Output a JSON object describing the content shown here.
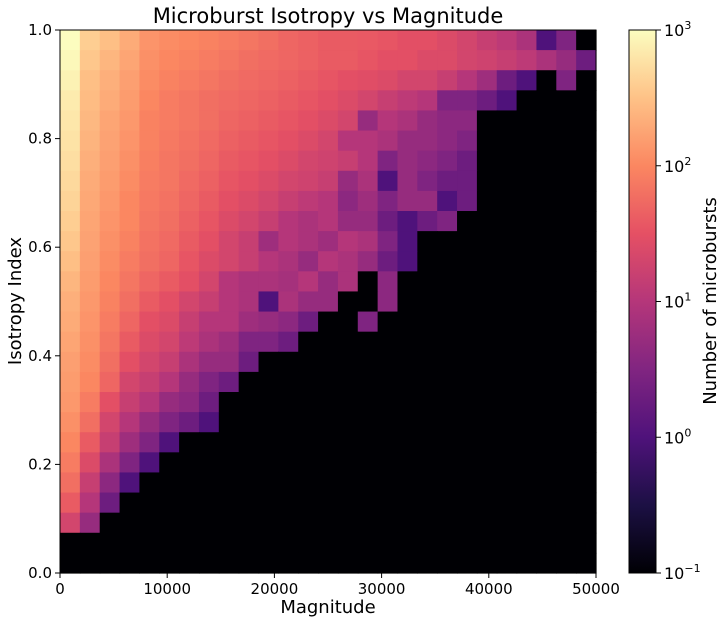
{
  "chart_data": {
    "type": "heatmap",
    "title": "Microburst Isotropy vs Magnitude",
    "xlabel": "Magnitude",
    "ylabel": "Isotropy Index",
    "xlim": [
      0,
      50000
    ],
    "ylim": [
      0,
      1.0
    ],
    "x_ticks": [
      "0",
      "10000",
      "20000",
      "30000",
      "40000",
      "50000"
    ],
    "y_ticks": [
      "0.0",
      "0.2",
      "0.4",
      "0.6",
      "0.8",
      "1.0"
    ],
    "x_tick_values": [
      0,
      10000,
      20000,
      30000,
      40000,
      50000
    ],
    "y_tick_values": [
      0,
      0.2,
      0.4,
      0.6,
      0.8,
      1.0
    ],
    "x_bins": {
      "start": 0,
      "end": 50000,
      "count": 27
    },
    "y_bins": {
      "start": 0,
      "end": 1.0,
      "count": 27
    },
    "colorbar": {
      "label": "Number of microbursts",
      "scale": "log",
      "vmin": 0.1,
      "vmax": 1000,
      "ticks": [
        {
          "base": "10",
          "exp": "−1",
          "value": 0.1
        },
        {
          "base": "10",
          "exp": "0",
          "value": 1
        },
        {
          "base": "10",
          "exp": "1",
          "value": 10
        },
        {
          "base": "10",
          "exp": "2",
          "value": 100
        },
        {
          "base": "10",
          "exp": "3",
          "value": 1000
        }
      ],
      "colormap": "magma"
    },
    "counts_rows_top_to_bottom": [
      [
        1000,
        400,
        300,
        200,
        130,
        110,
        100,
        90,
        80,
        70,
        60,
        50,
        45,
        40,
        40,
        38,
        35,
        30,
        30,
        25,
        20,
        15,
        12,
        8,
        1,
        3,
        0
      ],
      [
        900,
        350,
        250,
        180,
        120,
        100,
        90,
        80,
        70,
        60,
        55,
        50,
        45,
        40,
        40,
        35,
        30,
        30,
        25,
        25,
        20,
        18,
        15,
        12,
        8,
        5,
        2
      ],
      [
        800,
        300,
        220,
        160,
        110,
        90,
        80,
        70,
        60,
        55,
        50,
        45,
        40,
        35,
        30,
        28,
        25,
        20,
        20,
        15,
        10,
        6,
        2,
        1,
        0,
        3,
        0
      ],
      [
        700,
        280,
        200,
        150,
        100,
        80,
        70,
        60,
        55,
        50,
        45,
        40,
        35,
        30,
        25,
        20,
        15,
        12,
        10,
        3,
        3,
        2,
        1,
        0,
        0,
        0,
        0
      ],
      [
        650,
        260,
        180,
        140,
        90,
        80,
        70,
        60,
        50,
        45,
        40,
        35,
        30,
        25,
        20,
        5,
        10,
        8,
        5,
        4,
        4,
        0,
        0,
        0,
        0,
        0,
        0
      ],
      [
        600,
        240,
        170,
        130,
        90,
        75,
        65,
        55,
        45,
        40,
        35,
        30,
        25,
        20,
        10,
        10,
        8,
        5,
        5,
        4,
        3,
        0,
        0,
        0,
        0,
        0,
        0
      ],
      [
        550,
        220,
        160,
        120,
        85,
        70,
        60,
        50,
        40,
        35,
        30,
        25,
        20,
        18,
        15,
        10,
        3,
        5,
        4,
        3,
        2,
        0,
        0,
        0,
        0,
        0,
        0
      ],
      [
        500,
        200,
        150,
        110,
        80,
        70,
        55,
        45,
        35,
        30,
        25,
        20,
        18,
        15,
        5,
        8,
        1,
        5,
        3,
        2,
        2,
        0,
        0,
        0,
        0,
        0,
        0
      ],
      [
        450,
        190,
        140,
        100,
        75,
        65,
        50,
        40,
        30,
        25,
        20,
        15,
        12,
        10,
        4,
        6,
        3,
        5,
        5,
        1,
        2,
        0,
        0,
        0,
        0,
        0,
        0
      ],
      [
        400,
        180,
        130,
        100,
        70,
        60,
        45,
        35,
        25,
        20,
        15,
        10,
        8,
        10,
        5,
        5,
        2,
        1,
        2,
        3,
        0,
        0,
        0,
        0,
        0,
        0,
        0
      ],
      [
        350,
        170,
        120,
        90,
        65,
        55,
        40,
        30,
        20,
        15,
        6,
        10,
        8,
        6,
        10,
        8,
        3,
        1,
        0,
        0,
        0,
        0,
        0,
        0,
        0,
        0,
        0
      ],
      [
        300,
        160,
        110,
        80,
        60,
        50,
        35,
        25,
        20,
        15,
        10,
        8,
        5,
        10,
        8,
        5,
        2,
        1,
        0,
        0,
        0,
        0,
        0,
        0,
        0,
        0,
        0
      ],
      [
        250,
        150,
        100,
        70,
        50,
        40,
        30,
        20,
        10,
        8,
        8,
        7,
        10,
        5,
        8,
        0,
        4,
        0,
        0,
        0,
        0,
        0,
        0,
        0,
        0,
        0,
        0
      ],
      [
        220,
        140,
        90,
        60,
        40,
        30,
        20,
        15,
        10,
        8,
        1,
        8,
        5,
        5,
        0,
        0,
        4,
        0,
        0,
        0,
        0,
        0,
        0,
        0,
        0,
        0,
        0
      ],
      [
        200,
        130,
        80,
        50,
        30,
        25,
        15,
        10,
        10,
        6,
        5,
        4,
        2,
        0,
        0,
        3,
        0,
        0,
        0,
        0,
        0,
        0,
        0,
        0,
        0,
        0,
        0
      ],
      [
        180,
        120,
        70,
        40,
        25,
        20,
        12,
        8,
        6,
        3,
        3,
        2,
        0,
        0,
        0,
        0,
        0,
        0,
        0,
        0,
        0,
        0,
        0,
        0,
        0,
        0,
        0
      ],
      [
        160,
        110,
        60,
        30,
        20,
        15,
        8,
        5,
        5,
        2,
        0,
        0,
        0,
        0,
        0,
        0,
        0,
        0,
        0,
        0,
        0,
        0,
        0,
        0,
        0,
        0,
        0
      ],
      [
        150,
        100,
        50,
        20,
        15,
        10,
        5,
        3,
        2,
        0,
        0,
        0,
        0,
        0,
        0,
        0,
        0,
        0,
        0,
        0,
        0,
        0,
        0,
        0,
        0,
        0,
        0
      ],
      [
        140,
        80,
        30,
        15,
        10,
        5,
        4,
        2,
        0,
        0,
        0,
        0,
        0,
        0,
        0,
        0,
        0,
        0,
        0,
        0,
        0,
        0,
        0,
        0,
        0,
        0,
        0
      ],
      [
        120,
        60,
        20,
        10,
        5,
        3,
        2,
        1,
        0,
        0,
        0,
        0,
        0,
        0,
        0,
        0,
        0,
        0,
        0,
        0,
        0,
        0,
        0,
        0,
        0,
        0,
        0
      ],
      [
        100,
        40,
        15,
        6,
        3,
        1,
        0,
        0,
        0,
        0,
        0,
        0,
        0,
        0,
        0,
        0,
        0,
        0,
        0,
        0,
        0,
        0,
        0,
        0,
        0,
        0,
        0
      ],
      [
        80,
        25,
        8,
        3,
        1,
        0,
        0,
        0,
        0,
        0,
        0,
        0,
        0,
        0,
        0,
        0,
        0,
        0,
        0,
        0,
        0,
        0,
        0,
        0,
        0,
        0,
        0
      ],
      [
        60,
        15,
        4,
        1,
        0,
        0,
        0,
        0,
        0,
        0,
        0,
        0,
        0,
        0,
        0,
        0,
        0,
        0,
        0,
        0,
        0,
        0,
        0,
        0,
        0,
        0,
        0
      ],
      [
        40,
        10,
        2,
        0,
        0,
        0,
        0,
        0,
        0,
        0,
        0,
        0,
        0,
        0,
        0,
        0,
        0,
        0,
        0,
        0,
        0,
        0,
        0,
        0,
        0,
        0,
        0
      ],
      [
        20,
        5,
        0,
        0,
        0,
        0,
        0,
        0,
        0,
        0,
        0,
        0,
        0,
        0,
        0,
        0,
        0,
        0,
        0,
        0,
        0,
        0,
        0,
        0,
        0,
        0,
        0
      ],
      [
        0,
        0,
        0,
        0,
        0,
        0,
        0,
        0,
        0,
        0,
        0,
        0,
        0,
        0,
        0,
        0,
        0,
        0,
        0,
        0,
        0,
        0,
        0,
        0,
        0,
        0,
        0
      ],
      [
        0,
        0,
        0,
        0,
        0,
        0,
        0,
        0,
        0,
        0,
        0,
        0,
        0,
        0,
        0,
        0,
        0,
        0,
        0,
        0,
        0,
        0,
        0,
        0,
        0,
        0,
        0
      ]
    ]
  }
}
